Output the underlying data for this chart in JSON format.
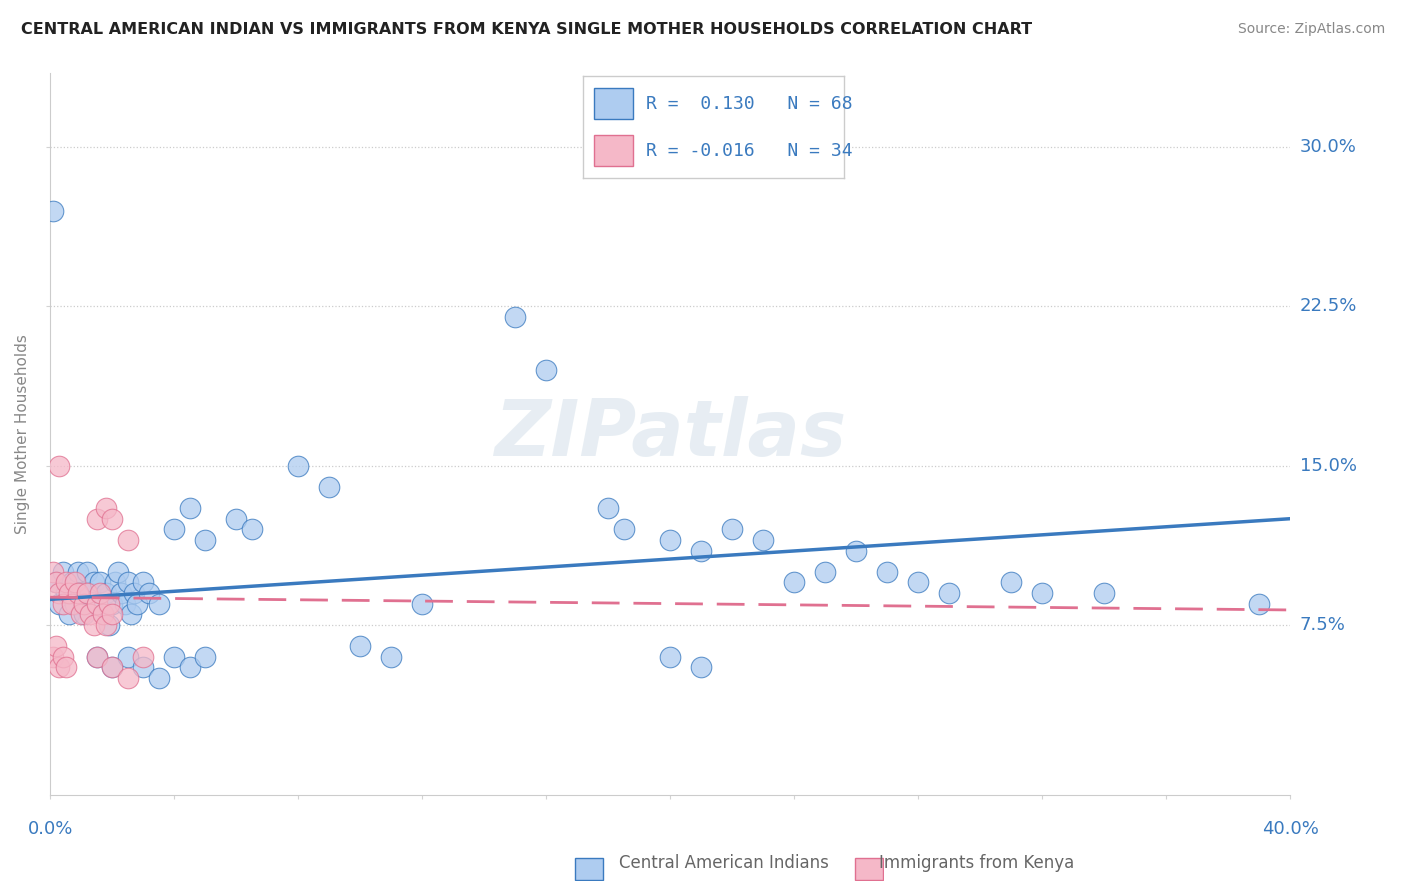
{
  "title": "CENTRAL AMERICAN INDIAN VS IMMIGRANTS FROM KENYA SINGLE MOTHER HOUSEHOLDS CORRELATION CHART",
  "source": "Source: ZipAtlas.com",
  "ylabel": "Single Mother Households",
  "ytick_labels": [
    "7.5%",
    "15.0%",
    "22.5%",
    "30.0%"
  ],
  "ytick_values": [
    0.075,
    0.15,
    0.225,
    0.3
  ],
  "xlim": [
    0.0,
    0.4
  ],
  "ylim": [
    -0.005,
    0.335
  ],
  "blue_color": "#aeccf0",
  "pink_color": "#f5b8c8",
  "blue_line_color": "#3a7abf",
  "pink_line_color": "#e07090",
  "blue_scatter": [
    [
      0.002,
      0.095
    ],
    [
      0.003,
      0.085
    ],
    [
      0.004,
      0.1
    ],
    [
      0.005,
      0.09
    ],
    [
      0.006,
      0.08
    ],
    [
      0.007,
      0.095
    ],
    [
      0.008,
      0.085
    ],
    [
      0.009,
      0.1
    ],
    [
      0.01,
      0.09
    ],
    [
      0.011,
      0.08
    ],
    [
      0.012,
      0.1
    ],
    [
      0.013,
      0.09
    ],
    [
      0.014,
      0.095
    ],
    [
      0.015,
      0.085
    ],
    [
      0.016,
      0.095
    ],
    [
      0.017,
      0.08
    ],
    [
      0.018,
      0.09
    ],
    [
      0.019,
      0.075
    ],
    [
      0.02,
      0.085
    ],
    [
      0.021,
      0.095
    ],
    [
      0.022,
      0.1
    ],
    [
      0.023,
      0.09
    ],
    [
      0.024,
      0.085
    ],
    [
      0.025,
      0.095
    ],
    [
      0.026,
      0.08
    ],
    [
      0.027,
      0.09
    ],
    [
      0.028,
      0.085
    ],
    [
      0.03,
      0.095
    ],
    [
      0.032,
      0.09
    ],
    [
      0.035,
      0.085
    ],
    [
      0.04,
      0.12
    ],
    [
      0.045,
      0.13
    ],
    [
      0.05,
      0.115
    ],
    [
      0.06,
      0.125
    ],
    [
      0.065,
      0.12
    ],
    [
      0.08,
      0.15
    ],
    [
      0.09,
      0.14
    ],
    [
      0.12,
      0.085
    ],
    [
      0.15,
      0.22
    ],
    [
      0.16,
      0.195
    ],
    [
      0.18,
      0.13
    ],
    [
      0.185,
      0.12
    ],
    [
      0.2,
      0.115
    ],
    [
      0.21,
      0.11
    ],
    [
      0.22,
      0.12
    ],
    [
      0.23,
      0.115
    ],
    [
      0.24,
      0.095
    ],
    [
      0.25,
      0.1
    ],
    [
      0.26,
      0.11
    ],
    [
      0.27,
      0.1
    ],
    [
      0.28,
      0.095
    ],
    [
      0.29,
      0.09
    ],
    [
      0.015,
      0.06
    ],
    [
      0.02,
      0.055
    ],
    [
      0.025,
      0.06
    ],
    [
      0.03,
      0.055
    ],
    [
      0.035,
      0.05
    ],
    [
      0.04,
      0.06
    ],
    [
      0.045,
      0.055
    ],
    [
      0.05,
      0.06
    ],
    [
      0.1,
      0.065
    ],
    [
      0.11,
      0.06
    ],
    [
      0.2,
      0.06
    ],
    [
      0.21,
      0.055
    ],
    [
      0.31,
      0.095
    ],
    [
      0.32,
      0.09
    ],
    [
      0.34,
      0.09
    ],
    [
      0.39,
      0.085
    ],
    [
      0.001,
      0.27
    ]
  ],
  "pink_scatter": [
    [
      0.001,
      0.1
    ],
    [
      0.002,
      0.095
    ],
    [
      0.003,
      0.09
    ],
    [
      0.004,
      0.085
    ],
    [
      0.005,
      0.095
    ],
    [
      0.006,
      0.09
    ],
    [
      0.007,
      0.085
    ],
    [
      0.008,
      0.095
    ],
    [
      0.009,
      0.09
    ],
    [
      0.01,
      0.08
    ],
    [
      0.011,
      0.085
    ],
    [
      0.012,
      0.09
    ],
    [
      0.013,
      0.08
    ],
    [
      0.014,
      0.075
    ],
    [
      0.015,
      0.085
    ],
    [
      0.016,
      0.09
    ],
    [
      0.017,
      0.08
    ],
    [
      0.018,
      0.075
    ],
    [
      0.019,
      0.085
    ],
    [
      0.02,
      0.08
    ],
    [
      0.003,
      0.15
    ],
    [
      0.015,
      0.125
    ],
    [
      0.018,
      0.13
    ],
    [
      0.02,
      0.125
    ],
    [
      0.025,
      0.115
    ],
    [
      0.001,
      0.06
    ],
    [
      0.002,
      0.065
    ],
    [
      0.003,
      0.055
    ],
    [
      0.004,
      0.06
    ],
    [
      0.005,
      0.055
    ],
    [
      0.015,
      0.06
    ],
    [
      0.02,
      0.055
    ],
    [
      0.025,
      0.05
    ],
    [
      0.03,
      0.06
    ]
  ]
}
